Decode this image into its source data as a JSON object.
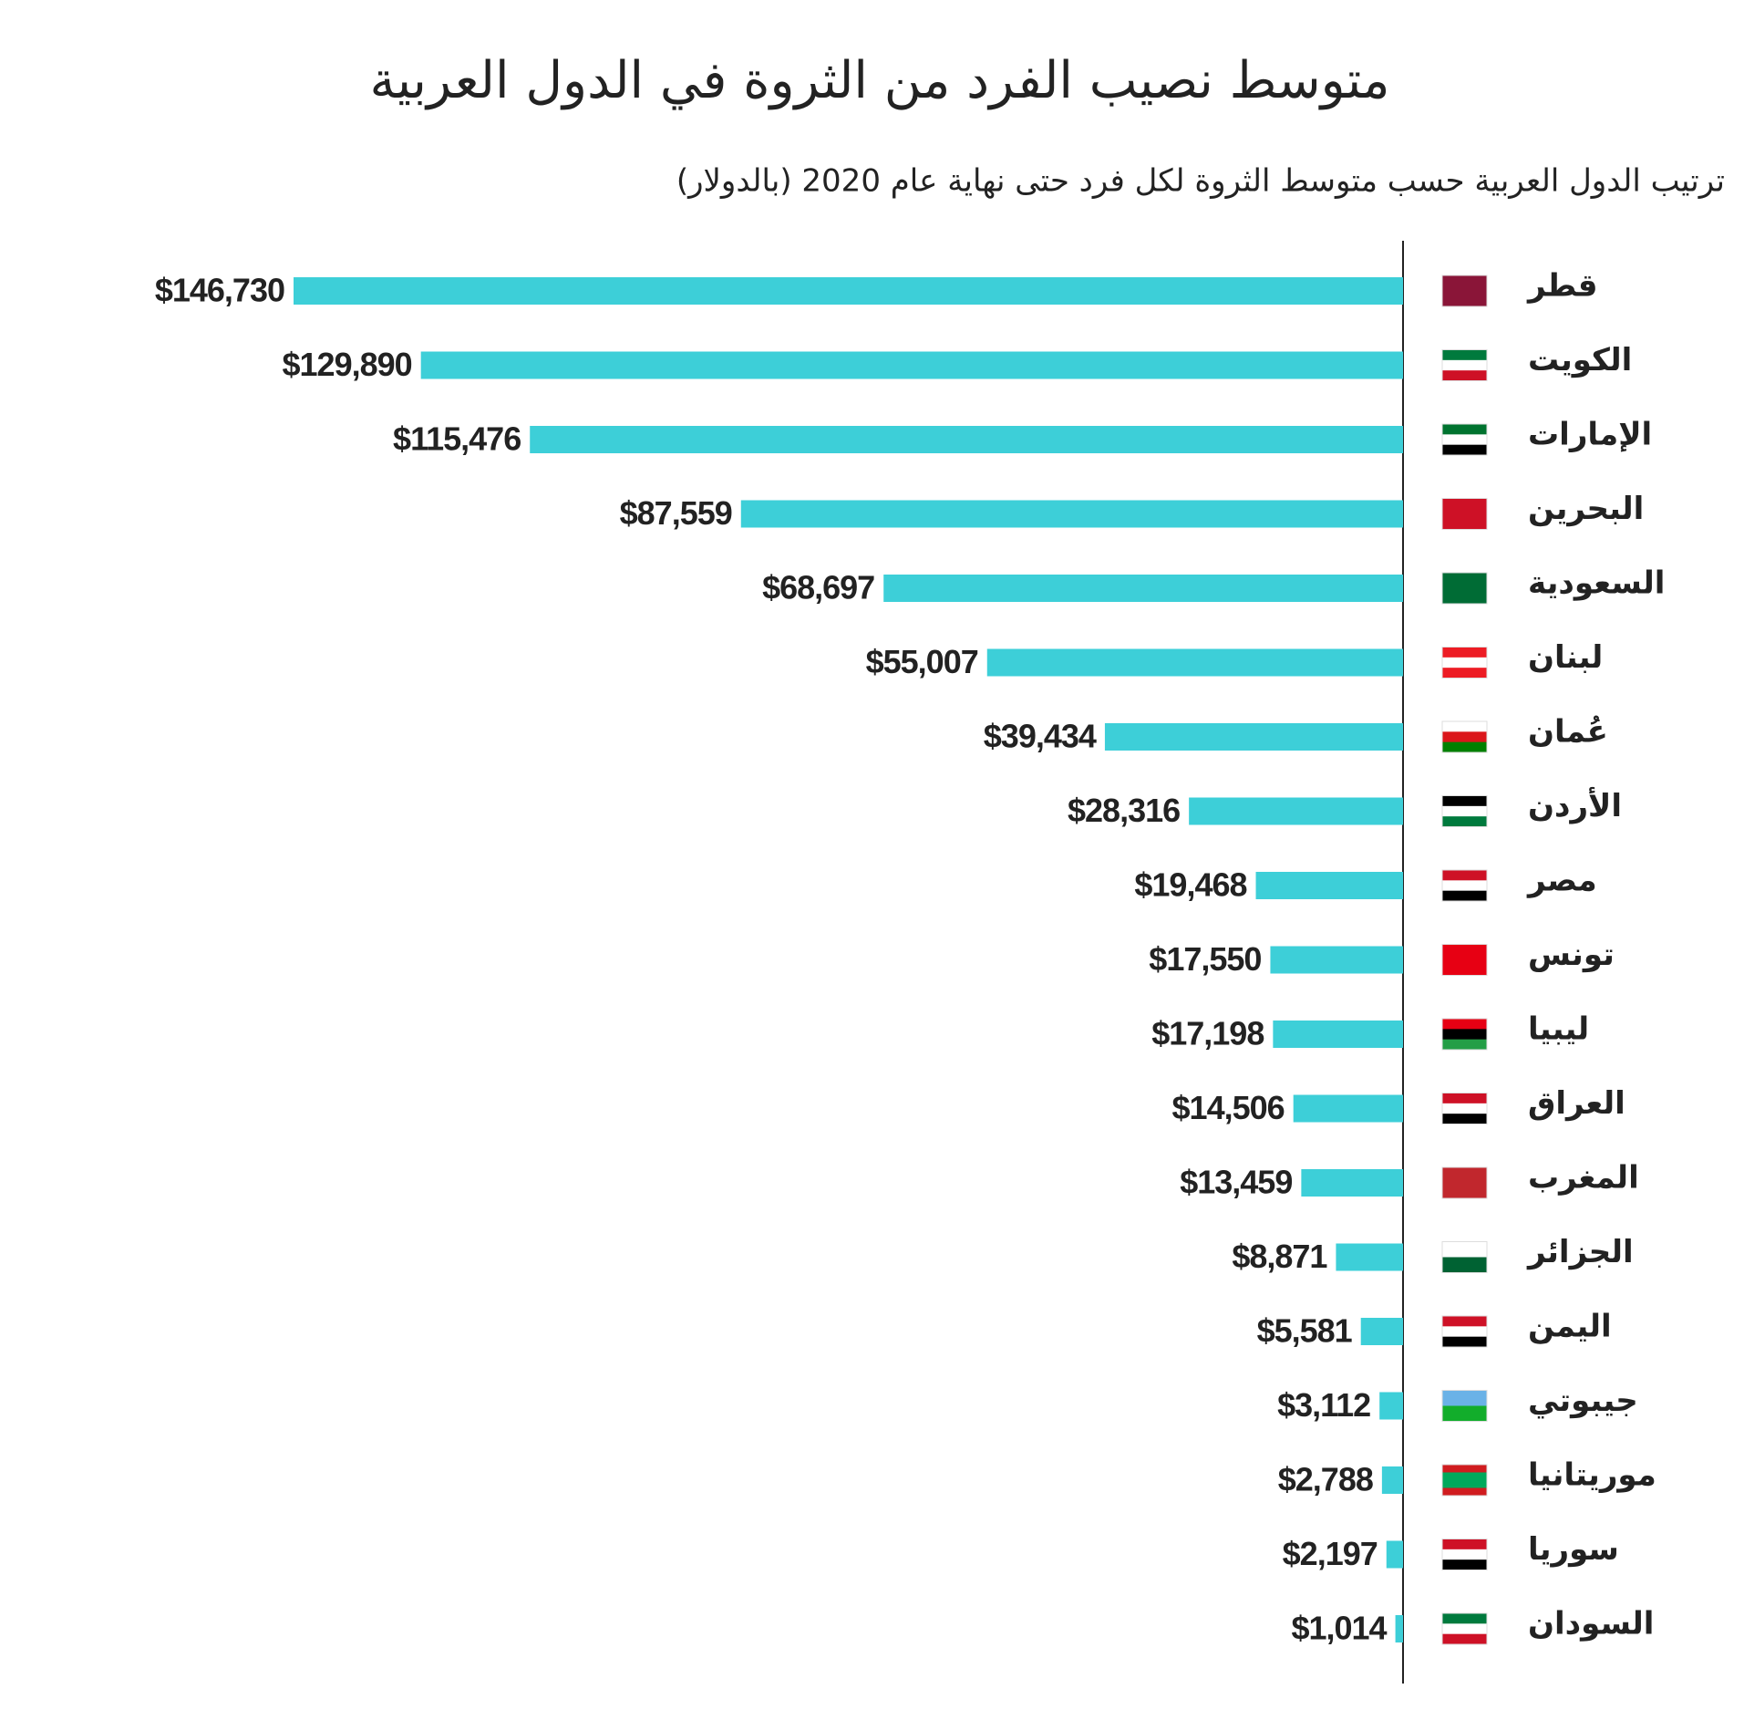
{
  "chart_data": {
    "type": "bar",
    "orientation": "horizontal",
    "title": "متوسط نصيب الفرد من الثروة في الدول العربية",
    "subtitle": "ترتيب الدول العربية حسب متوسط الثروة لكل فرد حتى نهاية عام 2020 (بالدولار)",
    "categories": [
      "قطر",
      "الكويت",
      "الإمارات",
      "البحرين",
      "السعودية",
      "لبنان",
      "عُمان",
      "الأردن",
      "مصر",
      "تونس",
      "ليبيا",
      "العراق",
      "المغرب",
      "الجزائر",
      "اليمن",
      "جيبوتي",
      "موريتانيا",
      "سوريا",
      "السودان"
    ],
    "values": [
      146730,
      129890,
      115476,
      87559,
      68697,
      55007,
      39434,
      28316,
      19468,
      17550,
      17198,
      14506,
      13459,
      8871,
      5581,
      3112,
      2788,
      2197,
      1014
    ],
    "value_labels": [
      "$146,730",
      "$129,890",
      "$115,476",
      "$87,559",
      "$68,697",
      "$55,007",
      "$39,434",
      "$28,316",
      "$19,468",
      "$17,550",
      "$17,198",
      "$14,506",
      "$13,459",
      "$8,871",
      "$5,581",
      "$3,112",
      "$2,788",
      "$2,197",
      "$1,014"
    ],
    "color": "#3dcfd8"
  }
}
